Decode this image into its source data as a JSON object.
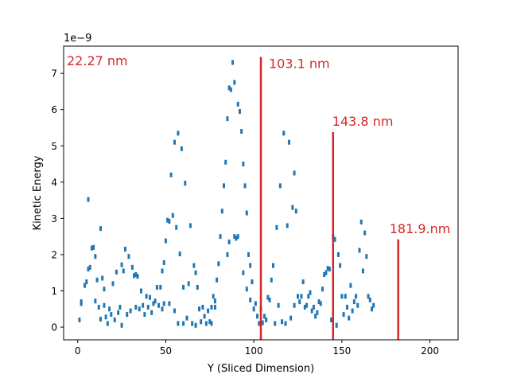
{
  "chart_data": {
    "type": "scatter",
    "xlabel": "Y (Sliced Dimension)",
    "ylabel": "Kinetic Energy",
    "y_exponent_label": "1e−9",
    "xlim": [
      -8,
      216
    ],
    "ylim": [
      -0.35,
      7.75
    ],
    "x_ticks": [
      0,
      50,
      100,
      150,
      200
    ],
    "y_ticks": [
      0,
      1,
      2,
      3,
      4,
      5,
      6,
      7
    ],
    "grid": false,
    "point_color": "#1f77b4",
    "marker_color": "#d62728",
    "annotations": [
      {
        "x": 0,
        "label": "22.27 nm",
        "line_top": null
      },
      {
        "x": 104,
        "label": "103.1 nm",
        "line_top": 7.45
      },
      {
        "x": 145,
        "label": "143.8 nm",
        "line_top": 5.38
      },
      {
        "x": 182,
        "label": "181.9.nm",
        "line_top": 2.42
      }
    ],
    "series": [
      {
        "points": [
          [
            1,
            0.2
          ],
          [
            2,
            0.65
          ],
          [
            2,
            0.7
          ],
          [
            4,
            1.15
          ],
          [
            5,
            1.25
          ],
          [
            6,
            3.52
          ],
          [
            6,
            1.6
          ],
          [
            7,
            1.65
          ],
          [
            8,
            2.18
          ],
          [
            9,
            2.2
          ],
          [
            10,
            1.95
          ],
          [
            10,
            0.72
          ],
          [
            11,
            1.3
          ],
          [
            12,
            0.55
          ],
          [
            13,
            0.22
          ],
          [
            13,
            2.72
          ],
          [
            14,
            1.35
          ],
          [
            15,
            1.05
          ],
          [
            15,
            0.6
          ],
          [
            16,
            0.28
          ],
          [
            17,
            0.1
          ],
          [
            18,
            0.5
          ],
          [
            19,
            0.35
          ],
          [
            20,
            1.2
          ],
          [
            21,
            0.2
          ],
          [
            22,
            1.52
          ],
          [
            23,
            0.4
          ],
          [
            24,
            0.55
          ],
          [
            25,
            1.72
          ],
          [
            25,
            0.05
          ],
          [
            26,
            1.55
          ],
          [
            27,
            2.15
          ],
          [
            28,
            0.35
          ],
          [
            29,
            1.95
          ],
          [
            30,
            0.45
          ],
          [
            31,
            1.65
          ],
          [
            32,
            1.42
          ],
          [
            33,
            1.45
          ],
          [
            33,
            0.55
          ],
          [
            34,
            1.4
          ],
          [
            35,
            0.5
          ],
          [
            36,
            1.0
          ],
          [
            37,
            0.6
          ],
          [
            38,
            0.35
          ],
          [
            39,
            0.85
          ],
          [
            40,
            0.55
          ],
          [
            41,
            0.82
          ],
          [
            42,
            0.4
          ],
          [
            43,
            0.65
          ],
          [
            44,
            0.72
          ],
          [
            45,
            1.1
          ],
          [
            46,
            0.6
          ],
          [
            47,
            1.1
          ],
          [
            48,
            1.55
          ],
          [
            48,
            0.5
          ],
          [
            49,
            1.78
          ],
          [
            49,
            0.65
          ],
          [
            50,
            2.38
          ],
          [
            51,
            2.95
          ],
          [
            52,
            2.92
          ],
          [
            52,
            0.65
          ],
          [
            53,
            4.2
          ],
          [
            54,
            3.08
          ],
          [
            55,
            5.1
          ],
          [
            55,
            0.45
          ],
          [
            56,
            2.75
          ],
          [
            57,
            5.35
          ],
          [
            57,
            0.1
          ],
          [
            58,
            2.02
          ],
          [
            59,
            4.92
          ],
          [
            60,
            1.1
          ],
          [
            60,
            0.1
          ],
          [
            61,
            3.97
          ],
          [
            62,
            0.25
          ],
          [
            63,
            1.2
          ],
          [
            64,
            2.8
          ],
          [
            65,
            0.1
          ],
          [
            66,
            1.7
          ],
          [
            67,
            1.5
          ],
          [
            67,
            0.05
          ],
          [
            68,
            1.1
          ],
          [
            69,
            0.5
          ],
          [
            70,
            0.15
          ],
          [
            71,
            0.55
          ],
          [
            72,
            0.3
          ],
          [
            73,
            0.1
          ],
          [
            74,
            0.45
          ],
          [
            75,
            0.15
          ],
          [
            76,
            0.55
          ],
          [
            76,
            0.1
          ],
          [
            77,
            0.85
          ],
          [
            78,
            0.72
          ],
          [
            78,
            0.55
          ],
          [
            79,
            1.3
          ],
          [
            80,
            1.75
          ],
          [
            81,
            2.5
          ],
          [
            82,
            3.2
          ],
          [
            83,
            3.9
          ],
          [
            84,
            4.55
          ],
          [
            85,
            5.75
          ],
          [
            85,
            2.0
          ],
          [
            86,
            6.6
          ],
          [
            86,
            2.35
          ],
          [
            87,
            6.55
          ],
          [
            88,
            7.3
          ],
          [
            89,
            2.5
          ],
          [
            89,
            6.75
          ],
          [
            90,
            2.45
          ],
          [
            91,
            6.15
          ],
          [
            91,
            2.5
          ],
          [
            92,
            5.95
          ],
          [
            93,
            5.4
          ],
          [
            94,
            4.5
          ],
          [
            94,
            1.5
          ],
          [
            95,
            3.9
          ],
          [
            96,
            3.15
          ],
          [
            96,
            1.05
          ],
          [
            97,
            2.0
          ],
          [
            98,
            1.7
          ],
          [
            98,
            0.75
          ],
          [
            99,
            1.25
          ],
          [
            100,
            0.5
          ],
          [
            101,
            0.65
          ],
          [
            102,
            0.3
          ],
          [
            103,
            0.1
          ],
          [
            104,
            0.5
          ],
          [
            105,
            0.12
          ],
          [
            106,
            0.3
          ],
          [
            107,
            0.2
          ],
          [
            108,
            0.82
          ],
          [
            109,
            0.75
          ],
          [
            110,
            1.3
          ],
          [
            111,
            1.7
          ],
          [
            112,
            0.1
          ],
          [
            113,
            2.75
          ],
          [
            114,
            0.6
          ],
          [
            115,
            3.9
          ],
          [
            116,
            0.15
          ],
          [
            117,
            5.35
          ],
          [
            118,
            0.1
          ],
          [
            119,
            2.8
          ],
          [
            120,
            5.1
          ],
          [
            121,
            0.25
          ],
          [
            122,
            3.3
          ],
          [
            123,
            4.25
          ],
          [
            123,
            0.6
          ],
          [
            124,
            3.2
          ],
          [
            125,
            0.85
          ],
          [
            126,
            0.7
          ],
          [
            127,
            0.85
          ],
          [
            128,
            1.25
          ],
          [
            129,
            0.55
          ],
          [
            130,
            0.6
          ],
          [
            131,
            0.85
          ],
          [
            132,
            0.95
          ],
          [
            133,
            0.45
          ],
          [
            134,
            0.55
          ],
          [
            135,
            0.3
          ],
          [
            136,
            0.4
          ],
          [
            137,
            0.7
          ],
          [
            138,
            0.65
          ],
          [
            139,
            1.05
          ],
          [
            140,
            1.45
          ],
          [
            141,
            1.5
          ],
          [
            142,
            1.62
          ],
          [
            143,
            1.6
          ],
          [
            144,
            0.2
          ],
          [
            145,
            2.5
          ],
          [
            146,
            2.42
          ],
          [
            147,
            0.05
          ],
          [
            148,
            2.0
          ],
          [
            149,
            1.7
          ],
          [
            150,
            0.85
          ],
          [
            151,
            0.35
          ],
          [
            152,
            0.85
          ],
          [
            153,
            0.55
          ],
          [
            154,
            0.25
          ],
          [
            155,
            1.15
          ],
          [
            156,
            0.45
          ],
          [
            157,
            0.7
          ],
          [
            158,
            0.85
          ],
          [
            159,
            0.6
          ],
          [
            160,
            2.12
          ],
          [
            161,
            2.9
          ],
          [
            162,
            1.55
          ],
          [
            163,
            2.6
          ],
          [
            164,
            1.95
          ],
          [
            165,
            0.85
          ],
          [
            166,
            0.75
          ],
          [
            167,
            0.5
          ],
          [
            168,
            0.6
          ]
        ]
      }
    ]
  }
}
